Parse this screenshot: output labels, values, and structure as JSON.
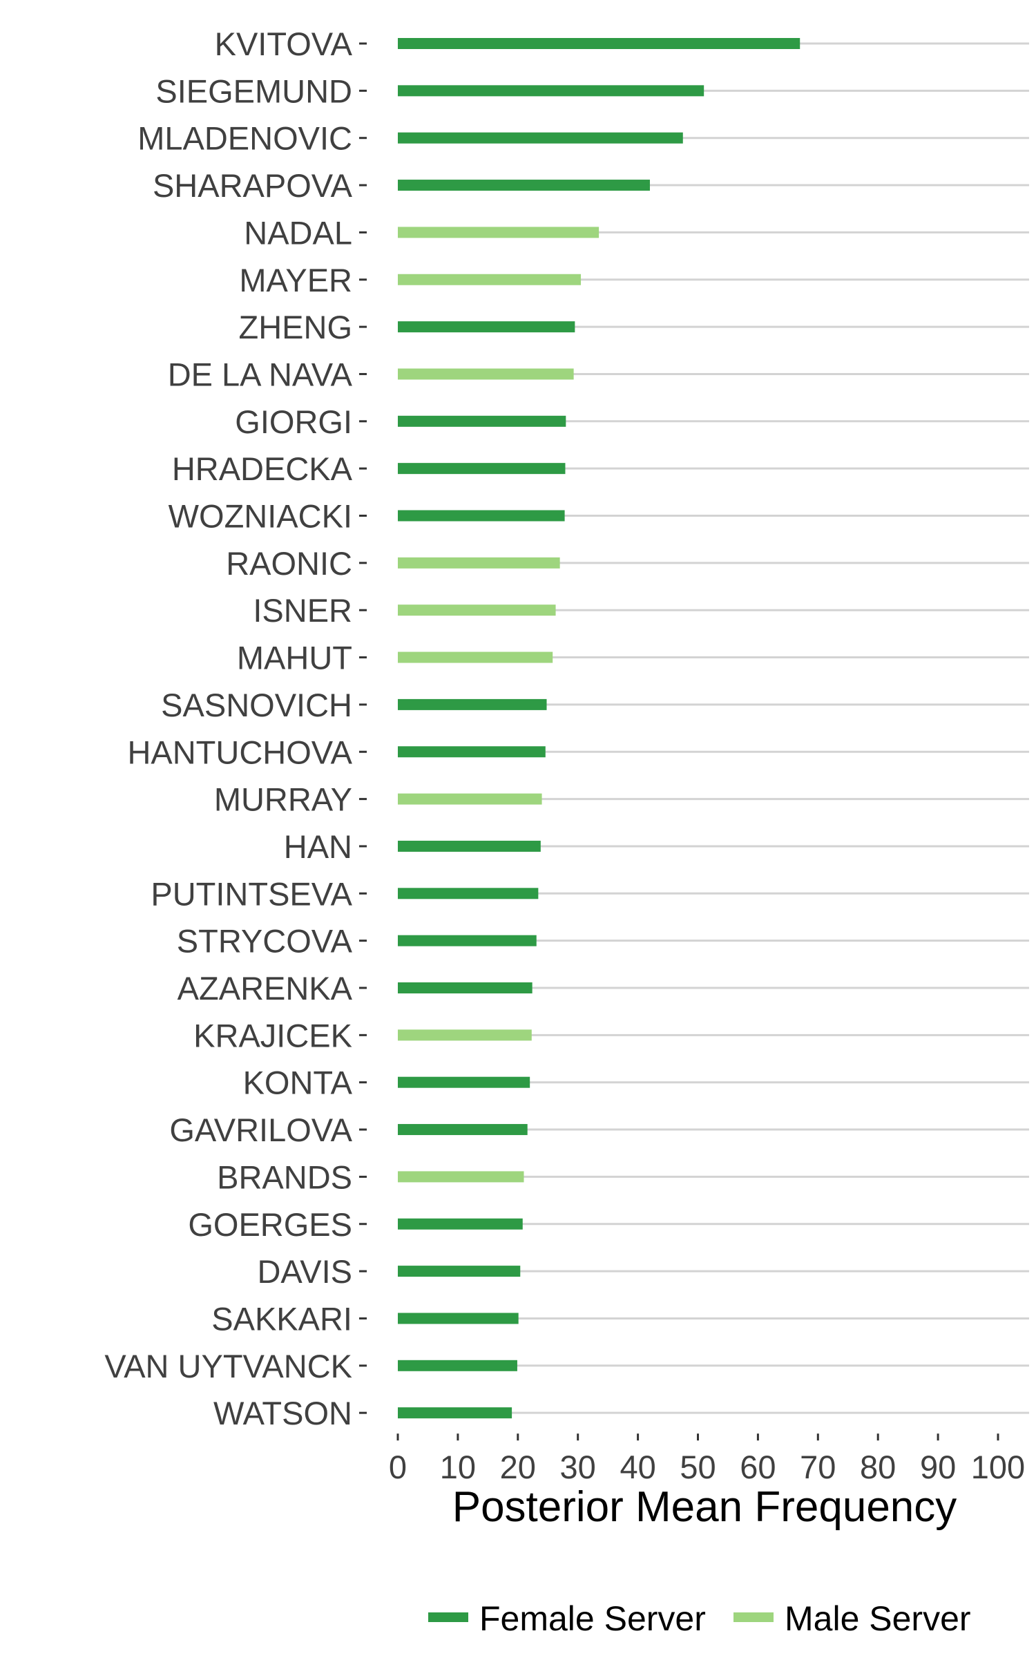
{
  "colors": {
    "female": "#2e9a45",
    "male": "#9ed57e",
    "grid": "#d3d3d3",
    "text": "#404040"
  },
  "legend": {
    "female_label": "Female Server",
    "male_label": "Male Server"
  },
  "chart_data": {
    "type": "bar",
    "orientation": "horizontal",
    "xlabel": "Posterior Mean Frequency",
    "xlim": [
      0,
      100
    ],
    "xticks": [
      0,
      10,
      20,
      30,
      40,
      50,
      60,
      70,
      80,
      90,
      100
    ],
    "grid": true,
    "legend_position": "bottom",
    "categories": [
      "KVITOVA",
      "SIEGEMUND",
      "MLADENOVIC",
      "SHARAPOVA",
      "NADAL",
      "MAYER",
      "ZHENG",
      "DE LA NAVA",
      "GIORGI",
      "HRADECKA",
      "WOZNIACKI",
      "RAONIC",
      "ISNER",
      "MAHUT",
      "SASNOVICH",
      "HANTUCHOVA",
      "MURRAY",
      "HAN",
      "PUTINTSEVA",
      "STRYCOVA",
      "AZARENKA",
      "KRAJICEK",
      "KONTA",
      "GAVRILOVA",
      "BRANDS",
      "GOERGES",
      "DAVIS",
      "SAKKARI",
      "VAN UYTVANCK",
      "WATSON"
    ],
    "values": [
      67,
      51,
      47.5,
      42,
      33.5,
      30.5,
      29.5,
      29.3,
      28,
      27.9,
      27.8,
      27,
      26.3,
      25.8,
      24.8,
      24.6,
      24,
      23.8,
      23.4,
      23.1,
      22.4,
      22.3,
      22,
      21.6,
      21,
      20.8,
      20.4,
      20.1,
      19.9,
      19
    ],
    "server": [
      "Female Server",
      "Female Server",
      "Female Server",
      "Female Server",
      "Male Server",
      "Male Server",
      "Female Server",
      "Male Server",
      "Female Server",
      "Female Server",
      "Female Server",
      "Male Server",
      "Male Server",
      "Male Server",
      "Female Server",
      "Female Server",
      "Male Server",
      "Female Server",
      "Female Server",
      "Female Server",
      "Female Server",
      "Male Server",
      "Female Server",
      "Female Server",
      "Male Server",
      "Female Server",
      "Female Server",
      "Female Server",
      "Female Server",
      "Female Server"
    ]
  }
}
